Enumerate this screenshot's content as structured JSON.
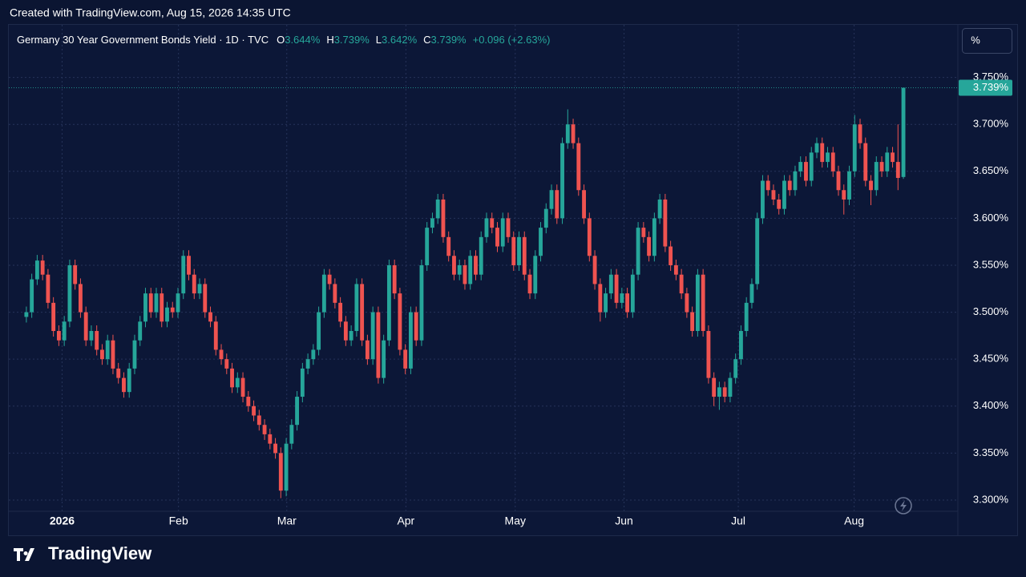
{
  "header": {
    "created": "Created with TradingView.com, Aug 15, 2026 14:35 UTC"
  },
  "footer": {
    "logo": "TradingView"
  },
  "chart_data": {
    "type": "candlestick",
    "title": "Germany 30 Year Government Bonds Yield · 1D · TVC",
    "legend": [
      {
        "label": "O",
        "value": "3.644%"
      },
      {
        "label": "H",
        "value": "3.739%"
      },
      {
        "label": "L",
        "value": "3.642%"
      },
      {
        "label": "C",
        "value": "3.739%"
      }
    ],
    "change": "+0.096 (+2.63%)",
    "unit_button": "%",
    "last_price_label": "3.739%",
    "up_color": "#26a69a",
    "down_color": "#ef5350",
    "grid": true,
    "xlim": [
      -3.24,
      172.06
    ],
    "xticks": [
      {
        "value": 6.6,
        "label": "2026"
      },
      {
        "value": 28.1,
        "label": "Feb"
      },
      {
        "value": 48.1,
        "label": "Mar"
      },
      {
        "value": 70.1,
        "label": "Apr"
      },
      {
        "value": 90.3,
        "label": "May"
      },
      {
        "value": 110.4,
        "label": "Jun"
      },
      {
        "value": 131.5,
        "label": "Jul"
      },
      {
        "value": 152.9,
        "label": "Aug"
      }
    ],
    "ylim": [
      3.288,
      3.806
    ],
    "yticks": [
      {
        "value": 3.3,
        "label": "3.300%"
      },
      {
        "value": 3.35,
        "label": "3.350%"
      },
      {
        "value": 3.4,
        "label": "3.400%"
      },
      {
        "value": 3.45,
        "label": "3.450%"
      },
      {
        "value": 3.5,
        "label": "3.500%"
      },
      {
        "value": 3.55,
        "label": "3.550%"
      },
      {
        "value": 3.6,
        "label": "3.600%"
      },
      {
        "value": 3.65,
        "label": "3.650%"
      },
      {
        "value": 3.7,
        "label": "3.700%"
      },
      {
        "value": 3.75,
        "label": "3.750%"
      }
    ],
    "ohlc": [
      [
        3.495,
        3.506,
        3.489,
        3.5
      ],
      [
        3.5,
        3.541,
        3.494,
        3.535
      ],
      [
        3.535,
        3.561,
        3.529,
        3.555
      ],
      [
        3.555,
        3.561,
        3.534,
        3.54
      ],
      [
        3.54,
        3.546,
        3.504,
        3.51
      ],
      [
        3.51,
        3.516,
        3.474,
        3.48
      ],
      [
        3.48,
        3.486,
        3.464,
        3.47
      ],
      [
        3.47,
        3.496,
        3.464,
        3.49
      ],
      [
        3.49,
        3.556,
        3.484,
        3.55
      ],
      [
        3.55,
        3.556,
        3.524,
        3.53
      ],
      [
        3.53,
        3.536,
        3.494,
        3.5
      ],
      [
        3.5,
        3.506,
        3.464,
        3.47
      ],
      [
        3.47,
        3.486,
        3.464,
        3.48
      ],
      [
        3.48,
        3.486,
        3.454,
        3.46
      ],
      [
        3.46,
        3.466,
        3.444,
        3.45
      ],
      [
        3.45,
        3.476,
        3.444,
        3.47
      ],
      [
        3.47,
        3.476,
        3.434,
        3.44
      ],
      [
        3.44,
        3.446,
        3.424,
        3.43
      ],
      [
        3.43,
        3.436,
        3.409,
        3.415
      ],
      [
        3.415,
        3.446,
        3.409,
        3.44
      ],
      [
        3.44,
        3.476,
        3.434,
        3.47
      ],
      [
        3.47,
        3.496,
        3.464,
        3.49
      ],
      [
        3.49,
        3.526,
        3.484,
        3.52
      ],
      [
        3.52,
        3.526,
        3.494,
        3.5
      ],
      [
        3.5,
        3.526,
        3.494,
        3.52
      ],
      [
        3.52,
        3.526,
        3.484,
        3.49
      ],
      [
        3.49,
        3.511,
        3.484,
        3.505
      ],
      [
        3.505,
        3.511,
        3.494,
        3.5
      ],
      [
        3.5,
        3.526,
        3.494,
        3.52
      ],
      [
        3.52,
        3.566,
        3.514,
        3.56
      ],
      [
        3.56,
        3.566,
        3.534,
        3.54
      ],
      [
        3.54,
        3.546,
        3.514,
        3.52
      ],
      [
        3.52,
        3.536,
        3.514,
        3.53
      ],
      [
        3.53,
        3.536,
        3.494,
        3.5
      ],
      [
        3.5,
        3.506,
        3.484,
        3.49
      ],
      [
        3.49,
        3.496,
        3.454,
        3.46
      ],
      [
        3.46,
        3.466,
        3.444,
        3.45
      ],
      [
        3.45,
        3.456,
        3.434,
        3.44
      ],
      [
        3.44,
        3.446,
        3.414,
        3.42
      ],
      [
        3.42,
        3.436,
        3.414,
        3.43
      ],
      [
        3.43,
        3.436,
        3.404,
        3.41
      ],
      [
        3.41,
        3.416,
        3.394,
        3.4
      ],
      [
        3.4,
        3.406,
        3.384,
        3.39
      ],
      [
        3.39,
        3.396,
        3.374,
        3.38
      ],
      [
        3.38,
        3.386,
        3.364,
        3.37
      ],
      [
        3.37,
        3.376,
        3.354,
        3.36
      ],
      [
        3.36,
        3.366,
        3.344,
        3.35
      ],
      [
        3.35,
        3.356,
        3.302,
        3.31
      ],
      [
        3.31,
        3.366,
        3.304,
        3.36
      ],
      [
        3.36,
        3.386,
        3.354,
        3.38
      ],
      [
        3.38,
        3.416,
        3.374,
        3.41
      ],
      [
        3.41,
        3.446,
        3.404,
        3.44
      ],
      [
        3.44,
        3.456,
        3.434,
        3.45
      ],
      [
        3.45,
        3.466,
        3.444,
        3.46
      ],
      [
        3.46,
        3.506,
        3.454,
        3.5
      ],
      [
        3.5,
        3.546,
        3.494,
        3.54
      ],
      [
        3.54,
        3.546,
        3.524,
        3.53
      ],
      [
        3.53,
        3.536,
        3.504,
        3.51
      ],
      [
        3.51,
        3.516,
        3.484,
        3.49
      ],
      [
        3.49,
        3.496,
        3.464,
        3.47
      ],
      [
        3.47,
        3.486,
        3.464,
        3.48
      ],
      [
        3.48,
        3.536,
        3.474,
        3.53
      ],
      [
        3.53,
        3.536,
        3.464,
        3.47
      ],
      [
        3.47,
        3.476,
        3.444,
        3.45
      ],
      [
        3.45,
        3.506,
        3.444,
        3.5
      ],
      [
        3.5,
        3.506,
        3.424,
        3.43
      ],
      [
        3.43,
        3.476,
        3.424,
        3.47
      ],
      [
        3.47,
        3.556,
        3.464,
        3.55
      ],
      [
        3.55,
        3.556,
        3.514,
        3.52
      ],
      [
        3.52,
        3.526,
        3.454,
        3.46
      ],
      [
        3.46,
        3.466,
        3.434,
        3.44
      ],
      [
        3.44,
        3.506,
        3.434,
        3.5
      ],
      [
        3.5,
        3.506,
        3.464,
        3.47
      ],
      [
        3.47,
        3.556,
        3.464,
        3.55
      ],
      [
        3.55,
        3.596,
        3.544,
        3.59
      ],
      [
        3.59,
        3.606,
        3.584,
        3.6
      ],
      [
        3.6,
        3.626,
        3.594,
        3.62
      ],
      [
        3.62,
        3.626,
        3.574,
        3.58
      ],
      [
        3.58,
        3.586,
        3.554,
        3.56
      ],
      [
        3.56,
        3.566,
        3.534,
        3.54
      ],
      [
        3.54,
        3.556,
        3.534,
        3.55
      ],
      [
        3.55,
        3.556,
        3.524,
        3.53
      ],
      [
        3.53,
        3.566,
        3.524,
        3.56
      ],
      [
        3.56,
        3.566,
        3.534,
        3.54
      ],
      [
        3.54,
        3.586,
        3.534,
        3.58
      ],
      [
        3.58,
        3.606,
        3.574,
        3.6
      ],
      [
        3.6,
        3.606,
        3.584,
        3.59
      ],
      [
        3.59,
        3.596,
        3.564,
        3.57
      ],
      [
        3.57,
        3.606,
        3.564,
        3.6
      ],
      [
        3.6,
        3.606,
        3.574,
        3.58
      ],
      [
        3.58,
        3.586,
        3.544,
        3.55
      ],
      [
        3.55,
        3.586,
        3.544,
        3.58
      ],
      [
        3.58,
        3.586,
        3.534,
        3.54
      ],
      [
        3.54,
        3.546,
        3.514,
        3.52
      ],
      [
        3.52,
        3.566,
        3.514,
        3.56
      ],
      [
        3.56,
        3.596,
        3.554,
        3.59
      ],
      [
        3.59,
        3.616,
        3.584,
        3.61
      ],
      [
        3.61,
        3.636,
        3.604,
        3.63
      ],
      [
        3.63,
        3.636,
        3.594,
        3.6
      ],
      [
        3.6,
        3.686,
        3.594,
        3.68
      ],
      [
        3.68,
        3.716,
        3.674,
        3.7
      ],
      [
        3.7,
        3.706,
        3.674,
        3.68
      ],
      [
        3.68,
        3.686,
        3.624,
        3.63
      ],
      [
        3.63,
        3.636,
        3.594,
        3.6
      ],
      [
        3.6,
        3.606,
        3.554,
        3.56
      ],
      [
        3.56,
        3.566,
        3.524,
        3.53
      ],
      [
        3.53,
        3.536,
        3.49,
        3.5
      ],
      [
        3.5,
        3.526,
        3.494,
        3.52
      ],
      [
        3.52,
        3.546,
        3.514,
        3.54
      ],
      [
        3.54,
        3.546,
        3.504,
        3.51
      ],
      [
        3.51,
        3.526,
        3.504,
        3.52
      ],
      [
        3.52,
        3.526,
        3.494,
        3.5
      ],
      [
        3.5,
        3.546,
        3.494,
        3.54
      ],
      [
        3.54,
        3.596,
        3.534,
        3.59
      ],
      [
        3.59,
        3.596,
        3.574,
        3.58
      ],
      [
        3.58,
        3.586,
        3.554,
        3.56
      ],
      [
        3.56,
        3.606,
        3.554,
        3.6
      ],
      [
        3.6,
        3.626,
        3.594,
        3.62
      ],
      [
        3.62,
        3.626,
        3.564,
        3.57
      ],
      [
        3.57,
        3.576,
        3.544,
        3.55
      ],
      [
        3.55,
        3.556,
        3.534,
        3.54
      ],
      [
        3.54,
        3.546,
        3.514,
        3.52
      ],
      [
        3.52,
        3.526,
        3.494,
        3.5
      ],
      [
        3.5,
        3.506,
        3.474,
        3.48
      ],
      [
        3.48,
        3.546,
        3.474,
        3.54
      ],
      [
        3.54,
        3.546,
        3.474,
        3.48
      ],
      [
        3.48,
        3.486,
        3.424,
        3.43
      ],
      [
        3.43,
        3.436,
        3.4,
        3.41
      ],
      [
        3.41,
        3.426,
        3.396,
        3.42
      ],
      [
        3.42,
        3.426,
        3.404,
        3.41
      ],
      [
        3.41,
        3.436,
        3.404,
        3.43
      ],
      [
        3.43,
        3.456,
        3.424,
        3.45
      ],
      [
        3.45,
        3.486,
        3.444,
        3.48
      ],
      [
        3.48,
        3.516,
        3.474,
        3.51
      ],
      [
        3.51,
        3.536,
        3.504,
        3.53
      ],
      [
        3.53,
        3.606,
        3.524,
        3.6
      ],
      [
        3.6,
        3.646,
        3.594,
        3.64
      ],
      [
        3.64,
        3.646,
        3.624,
        3.63
      ],
      [
        3.63,
        3.636,
        3.614,
        3.62
      ],
      [
        3.62,
        3.626,
        3.604,
        3.61
      ],
      [
        3.61,
        3.646,
        3.604,
        3.64
      ],
      [
        3.64,
        3.646,
        3.624,
        3.63
      ],
      [
        3.63,
        3.656,
        3.624,
        3.65
      ],
      [
        3.65,
        3.666,
        3.644,
        3.66
      ],
      [
        3.66,
        3.666,
        3.634,
        3.64
      ],
      [
        3.64,
        3.676,
        3.634,
        3.67
      ],
      [
        3.67,
        3.686,
        3.664,
        3.68
      ],
      [
        3.68,
        3.686,
        3.654,
        3.66
      ],
      [
        3.66,
        3.676,
        3.654,
        3.67
      ],
      [
        3.67,
        3.676,
        3.644,
        3.65
      ],
      [
        3.65,
        3.656,
        3.624,
        3.63
      ],
      [
        3.63,
        3.636,
        3.604,
        3.62
      ],
      [
        3.62,
        3.656,
        3.614,
        3.65
      ],
      [
        3.65,
        3.71,
        3.644,
        3.7
      ],
      [
        3.7,
        3.706,
        3.674,
        3.68
      ],
      [
        3.68,
        3.686,
        3.634,
        3.64
      ],
      [
        3.64,
        3.646,
        3.614,
        3.63
      ],
      [
        3.63,
        3.666,
        3.624,
        3.66
      ],
      [
        3.66,
        3.666,
        3.644,
        3.65
      ],
      [
        3.65,
        3.676,
        3.644,
        3.67
      ],
      [
        3.67,
        3.676,
        3.654,
        3.66
      ],
      [
        3.66,
        3.7,
        3.63,
        3.643
      ],
      [
        3.644,
        3.739,
        3.642,
        3.739
      ]
    ]
  }
}
